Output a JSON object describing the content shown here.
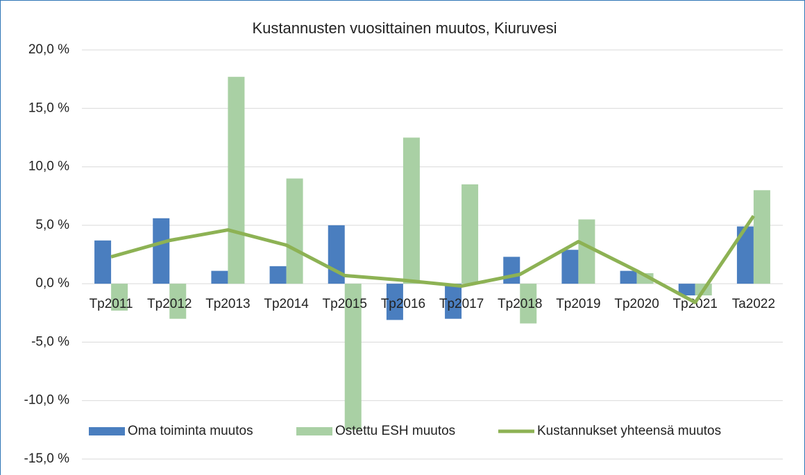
{
  "chart_data": {
    "type": "bar_line",
    "title": "Kustannusten vuosittainen muutos, Kiuruvesi",
    "categories": [
      "Tp2011",
      "Tp2012",
      "Tp2013",
      "Tp2014",
      "Tp2015",
      "Tp2016",
      "Tp2017",
      "Tp2018",
      "Tp2019",
      "Tp2020",
      "Tp2021",
      "Ta2022"
    ],
    "series": [
      {
        "name": "Oma toiminta muutos",
        "type": "bar",
        "color": "#4a7ebf",
        "values": [
          3.7,
          5.6,
          1.1,
          1.5,
          5.0,
          -3.1,
          -3.0,
          2.3,
          2.9,
          1.1,
          -1.0,
          4.9
        ]
      },
      {
        "name": "Ostettu ESH muutos",
        "type": "bar",
        "color": "#a9d0a4",
        "values": [
          -2.3,
          -3.0,
          17.7,
          9.0,
          -12.5,
          12.5,
          8.5,
          -3.4,
          5.5,
          0.9,
          -1.0,
          8.0
        ]
      },
      {
        "name": "Kustannukset yhteensä muutos",
        "type": "line",
        "color": "#8db254",
        "values": [
          2.3,
          3.7,
          4.6,
          3.3,
          0.7,
          0.3,
          -0.2,
          0.8,
          3.6,
          1.1,
          -1.6,
          5.8
        ]
      }
    ],
    "ylim": [
      -15,
      20
    ],
    "yticks": [
      {
        "value": -15,
        "label": "-15,0 %"
      },
      {
        "value": -10,
        "label": "-10,0 %"
      },
      {
        "value": -5,
        "label": "-5,0 %"
      },
      {
        "value": 0,
        "label": "0,0 %"
      },
      {
        "value": 5,
        "label": "5,0 %"
      },
      {
        "value": 10,
        "label": "10,0 %"
      },
      {
        "value": 15,
        "label": "15,0 %"
      },
      {
        "value": 20,
        "label": "20,0 %"
      }
    ],
    "grid": true,
    "legend": "bottom"
  }
}
